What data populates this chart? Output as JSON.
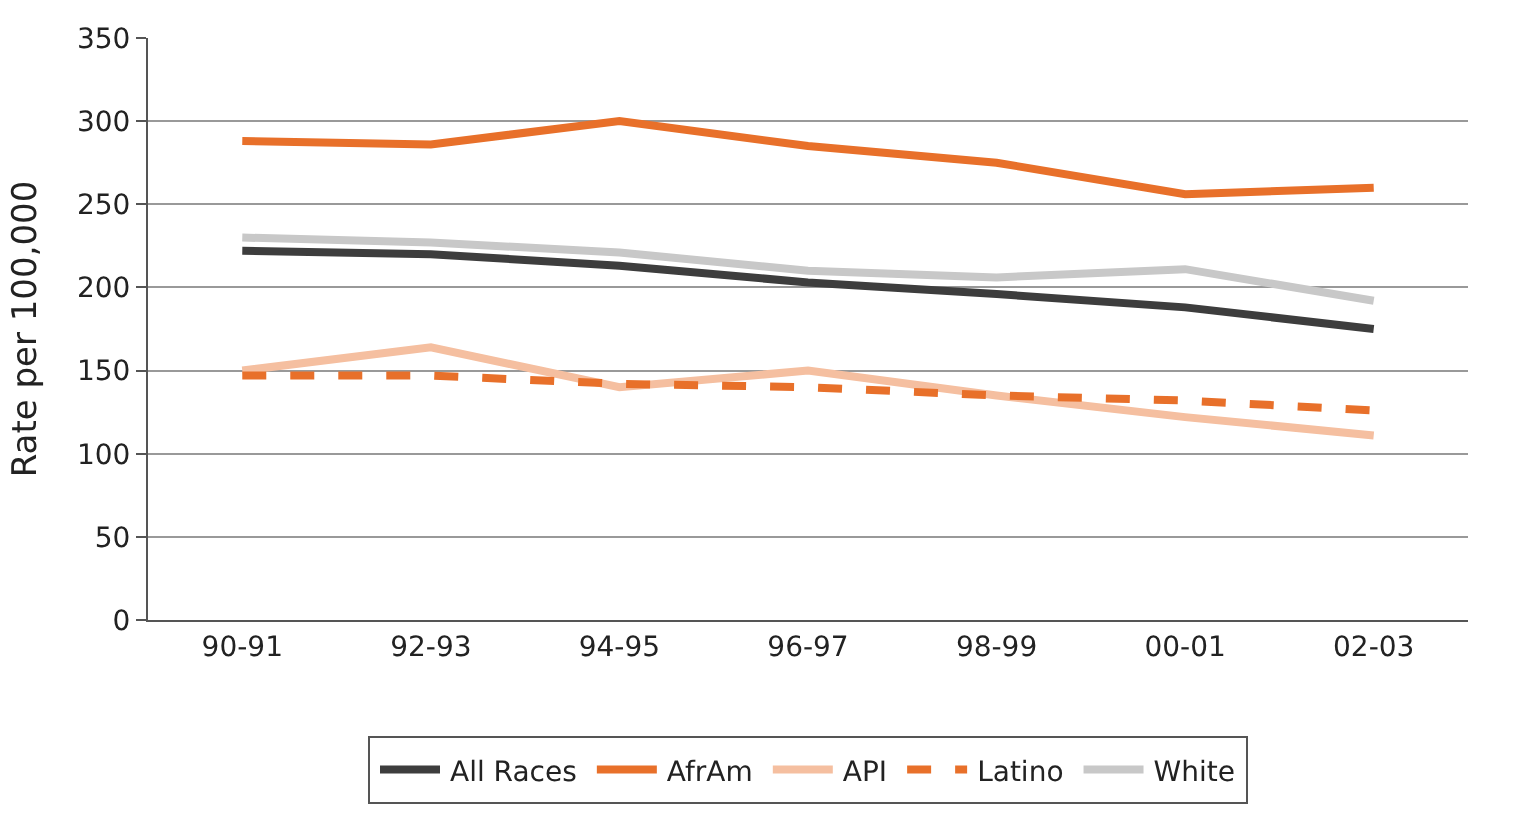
{
  "chart_data": {
    "type": "line",
    "ylabel": "Rate per 100,000",
    "categories": [
      "90-91",
      "92-93",
      "94-95",
      "96-97",
      "98-99",
      "00-01",
      "02-03"
    ],
    "ylim": [
      0,
      350
    ],
    "yticks": [
      0,
      50,
      100,
      150,
      200,
      250,
      300,
      350
    ],
    "grid": "y",
    "legend": "bottom",
    "marker": "none",
    "series": [
      {
        "name": "All Races",
        "color": "#3d3d3d",
        "line_style": "solid",
        "values": [
          222,
          220,
          213,
          203,
          196,
          188,
          175
        ]
      },
      {
        "name": "AfrAm",
        "color": "#e8702a",
        "line_style": "solid",
        "values": [
          288,
          286,
          300,
          285,
          275,
          256,
          260
        ]
      },
      {
        "name": "API",
        "color": "#f5bfa0",
        "line_style": "solid",
        "values": [
          150,
          164,
          140,
          150,
          135,
          122,
          111
        ]
      },
      {
        "name": "Latino",
        "color": "#e8702a",
        "line_style": "dashed",
        "values": [
          147,
          147,
          142,
          140,
          135,
          132,
          126
        ]
      },
      {
        "name": "White",
        "color": "#c8c8c8",
        "line_style": "solid",
        "values": [
          230,
          227,
          221,
          210,
          206,
          211,
          192
        ]
      }
    ]
  }
}
